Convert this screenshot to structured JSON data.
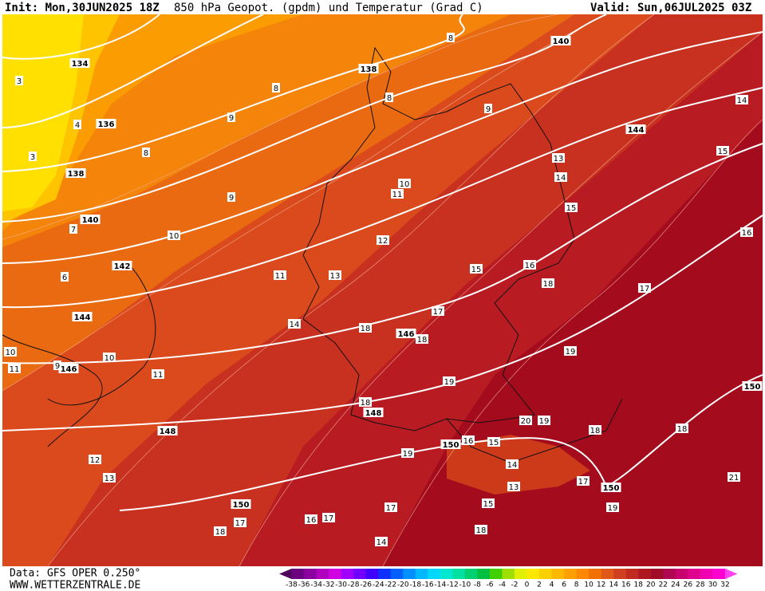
{
  "header": {
    "init": "Init: Mon,30JUN2025 18Z",
    "title": "850 hPa Geopot. (gpdm) und Temperatur (Grad C)",
    "valid": "Valid: Sun,06JUL2025 03Z"
  },
  "footer": {
    "source": "Data: GFS OPER 0.250°",
    "website": "WWW.WETTERZENTRALE.DE"
  },
  "geopotential_labels": [
    "134",
    "136",
    "138",
    "140",
    "142",
    "144",
    "146",
    "148",
    "150",
    "138",
    "140",
    "144",
    "146",
    "148",
    "150",
    "150",
    "150"
  ],
  "temperature_labels": [
    "8",
    "3",
    "8",
    "9",
    "4",
    "8",
    "3",
    "9",
    "8",
    "9",
    "7",
    "10",
    "6",
    "10",
    "11",
    "12",
    "11",
    "13",
    "15",
    "16",
    "13",
    "14",
    "15",
    "15",
    "14",
    "16",
    "17",
    "18",
    "17",
    "14",
    "18",
    "18",
    "19",
    "19",
    "10",
    "10",
    "11",
    "9",
    "11",
    "18",
    "20",
    "19",
    "18",
    "18",
    "12",
    "13",
    "19",
    "16",
    "15",
    "14",
    "13",
    "17",
    "15",
    "19",
    "21",
    "17",
    "17",
    "16",
    "17",
    "18",
    "18",
    "14"
  ],
  "color_scale": {
    "ticks": [
      -38,
      -36,
      -34,
      -32,
      -30,
      -28,
      -26,
      -24,
      -22,
      -20,
      -18,
      -16,
      -14,
      -12,
      -10,
      -8,
      -6,
      -4,
      -2,
      0,
      2,
      4,
      6,
      8,
      10,
      12,
      14,
      16,
      18,
      20,
      22,
      24,
      26,
      28,
      30,
      32
    ],
    "colors": [
      "#50005a",
      "#6a0080",
      "#8c00a0",
      "#b000c0",
      "#d000e0",
      "#a000ff",
      "#7000ff",
      "#4000ff",
      "#1030ff",
      "#0060ff",
      "#0090ff",
      "#00b8ff",
      "#00d8ff",
      "#00e8d0",
      "#00e0a0",
      "#00d070",
      "#00c040",
      "#40d000",
      "#a0e000",
      "#e0f000",
      "#ffe800",
      "#ffd000",
      "#ffb800",
      "#ffa000",
      "#ff8800",
      "#f07000",
      "#e05818",
      "#d04020",
      "#c02a20",
      "#b01820",
      "#a00c28",
      "#b00850",
      "#c80070",
      "#e00090",
      "#f000b0",
      "#ff00d0",
      "#ff40f0"
    ]
  }
}
